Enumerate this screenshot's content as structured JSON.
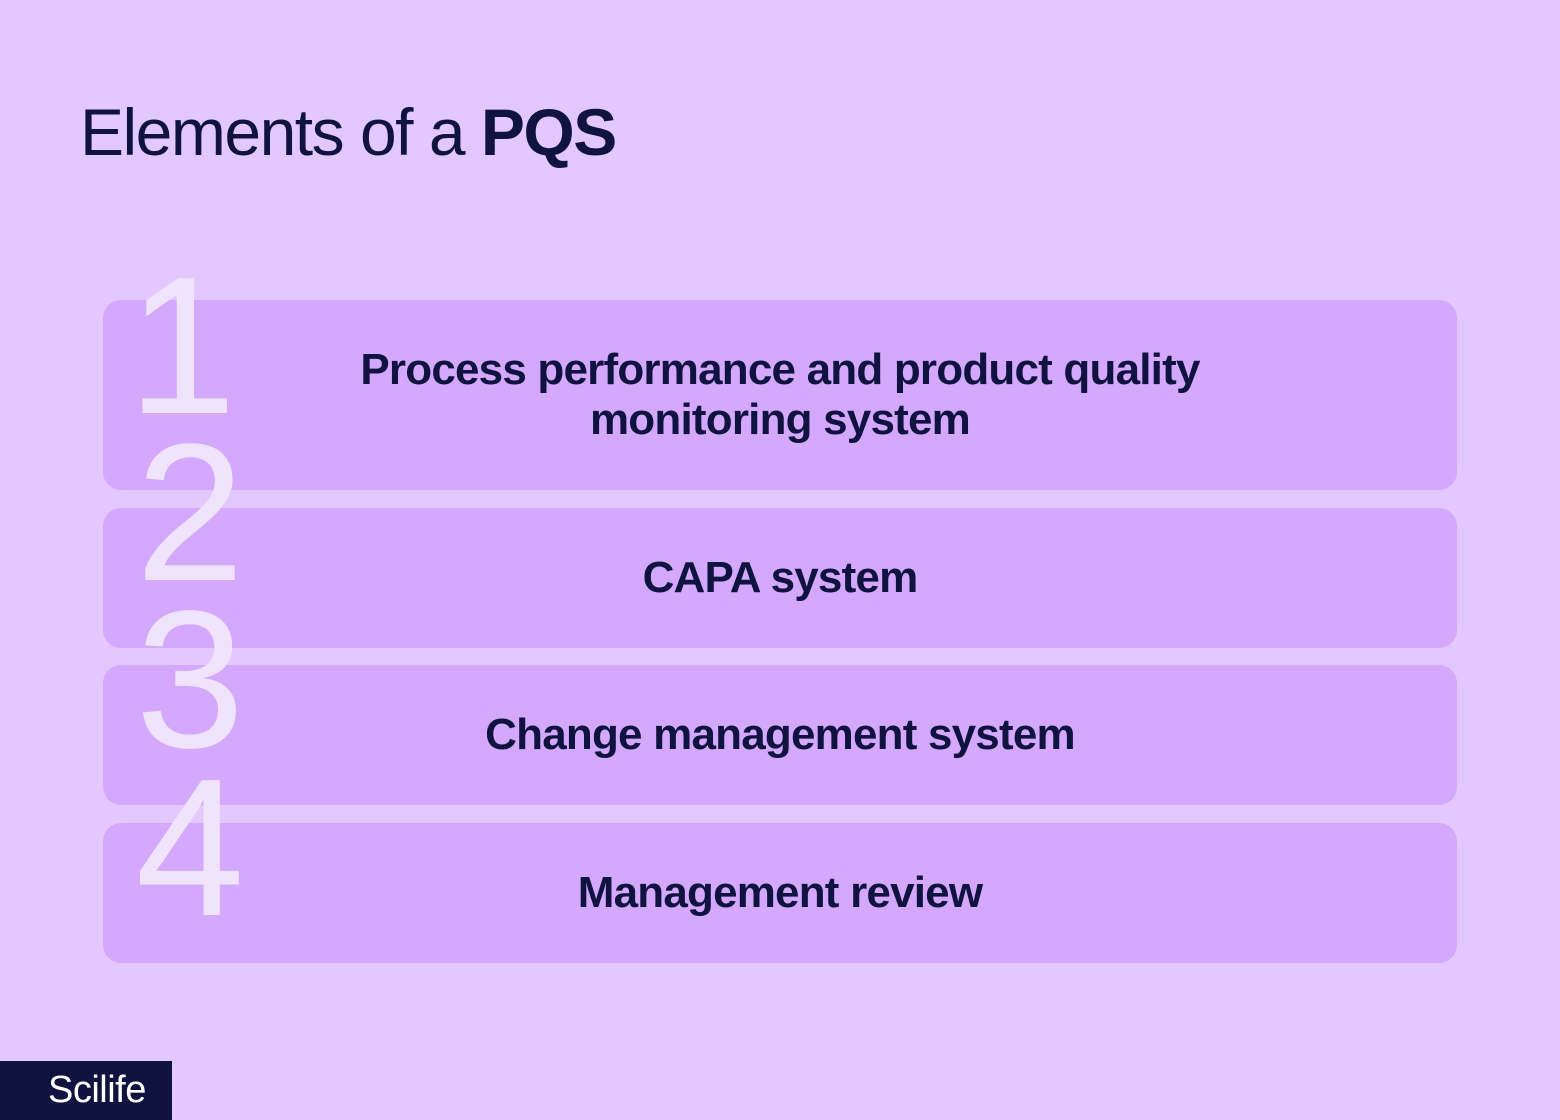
{
  "title": {
    "light": "Elements of a ",
    "bold": "PQS"
  },
  "items": [
    {
      "number": "1",
      "label": "Process performance and product quality monitoring system"
    },
    {
      "number": "2",
      "label": "CAPA system"
    },
    {
      "number": "3",
      "label": "Change management system"
    },
    {
      "number": "4",
      "label": "Management review"
    }
  ],
  "logo": "Scilife",
  "colors": {
    "background": "#e3c8fe",
    "card": "#d4a9fd",
    "text": "#10133f",
    "number": "#f0e3fc"
  }
}
